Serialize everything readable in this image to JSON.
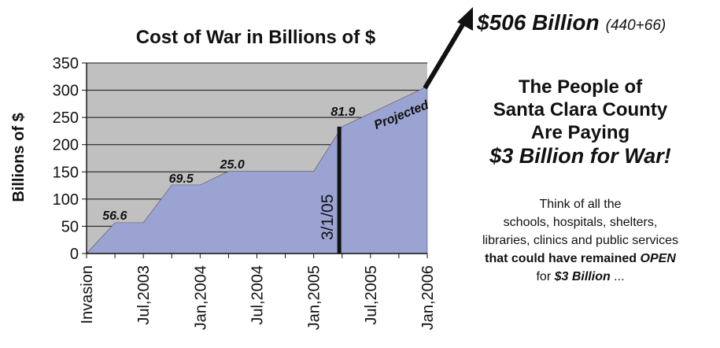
{
  "chart_data": {
    "type": "area",
    "title": "Cost of War in Billions of $",
    "ylabel": "Billions of $",
    "xlabel": "",
    "ylim": [
      0,
      350
    ],
    "yticks": [
      0,
      50,
      100,
      150,
      200,
      250,
      300,
      350
    ],
    "categories": [
      "Invasion",
      "Jul,2003",
      "Jan,2004",
      "Jul,2004",
      "Jan,2005",
      "Jul,2005",
      "Jan,2006"
    ],
    "grid": "horizontal",
    "series": [
      {
        "color": "#9aa3d1",
        "x": [
          0,
          0.5,
          1,
          1.5,
          2,
          2.5,
          3,
          3.5,
          4,
          4.5,
          6
        ],
        "y": [
          0,
          56.6,
          56.6,
          126,
          126,
          151,
          151,
          151,
          151,
          233,
          307
        ]
      }
    ],
    "annotations": [
      {
        "text": "56.6",
        "x": 0.28,
        "y": 62
      },
      {
        "text": "69.5",
        "x": 1.45,
        "y": 130
      },
      {
        "text": "25.0",
        "x": 2.35,
        "y": 156
      },
      {
        "text": "81.9",
        "x": 4.3,
        "y": 253
      },
      {
        "text": "Projected",
        "x": 5.1,
        "y": 228,
        "rotate": -22
      }
    ],
    "vline": {
      "x": 4.45,
      "label": "3/1/05"
    },
    "arrow_callout": {
      "main": "$506 Billion",
      "sub": "(440+66)"
    }
  },
  "panel": {
    "line1": "The People of",
    "line2": "Santa Clara County",
    "line3": "Are Paying",
    "line4": "$3 Billion for War!",
    "p1": "Think of all the",
    "p2": "schools, hospitals, shelters,",
    "p3": "libraries, clinics and public services",
    "p4a": "that could have remained ",
    "p4b": "OPEN",
    "p5a": "for ",
    "p5b": "$3 Billion",
    "p5c": " ..."
  },
  "colors": {
    "plot_bg": "#c0c0c0",
    "area": "#9aa3d1",
    "ink": "#111111"
  }
}
